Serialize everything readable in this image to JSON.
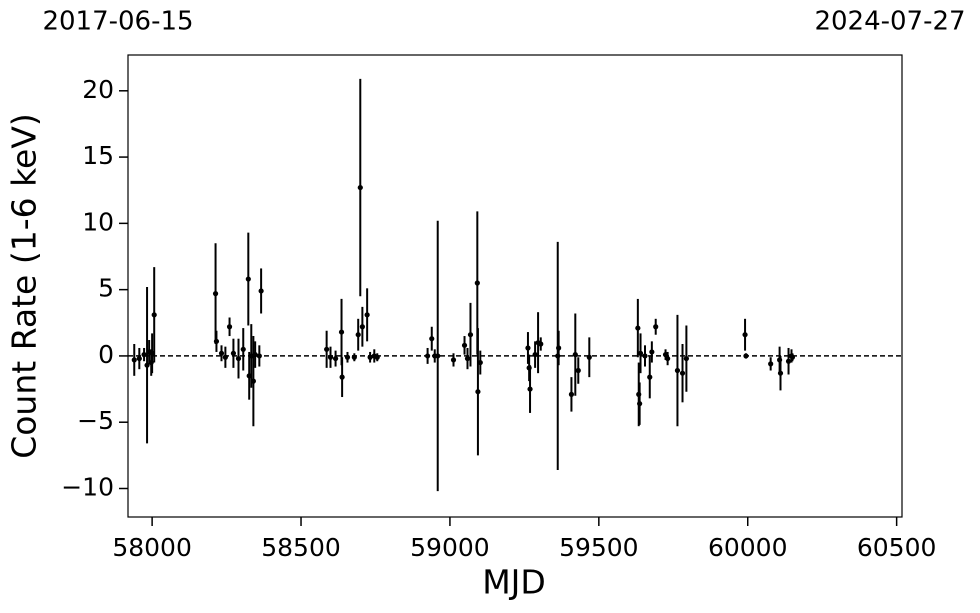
{
  "chart_data": {
    "type": "errorbar",
    "xlabel": "MJD",
    "ylabel": "Count Rate (1-6 keV)",
    "top_labels": [
      "2017-06-15",
      "2024-07-27"
    ],
    "xlim": [
      57919,
      60518
    ],
    "ylim": [
      -12.15,
      22.7
    ],
    "xticks": [
      58000,
      58500,
      59000,
      59500,
      60000,
      60500
    ],
    "yticks": [
      {
        "value": -10,
        "label": "−10"
      },
      {
        "value": -5,
        "label": "−5"
      },
      0,
      5,
      10,
      15,
      20
    ],
    "hline": 0,
    "color": "#000000",
    "series": [
      {
        "x": [
          57940,
          57957,
          57973,
          57983,
          57990,
          57997,
          58000,
          58007,
          58213,
          58216,
          58233,
          58246,
          58260,
          58273,
          58290,
          58306,
          58323,
          58326,
          58333,
          58340,
          58346,
          58360,
          58366,
          58586,
          58599,
          58616,
          58636,
          58638,
          58656,
          58679,
          58692,
          58699,
          58706,
          58722,
          58732,
          58746,
          58756,
          58925,
          58939,
          58949,
          58959,
          59012,
          59049,
          59059,
          59069,
          59092,
          59094,
          59102,
          59262,
          59266,
          59269,
          59286,
          59296,
          59305,
          59362,
          59365,
          59408,
          59421,
          59431,
          59468,
          59631,
          59634,
          59637,
          59640,
          59655,
          59671,
          59678,
          59691,
          59724,
          59731,
          59764,
          59781,
          59794,
          59991,
          59994,
          60077,
          60107,
          60110,
          60137,
          60147,
          60150
        ],
        "values": [
          -0.3,
          -0.2,
          0.1,
          -0.7,
          0.3,
          -0.5,
          0.2,
          3.1,
          4.7,
          1.1,
          0.2,
          -0.1,
          2.2,
          0.2,
          -0.2,
          0.5,
          5.8,
          -1.5,
          0.0,
          -1.9,
          0.1,
          0.0,
          4.9,
          0.5,
          -0.1,
          -0.2,
          1.8,
          -1.6,
          -0.1,
          -0.1,
          1.6,
          12.7,
          2.2,
          3.1,
          -0.1,
          0.0,
          -0.1,
          0.0,
          1.3,
          0.0,
          0.0,
          -0.3,
          0.8,
          -0.2,
          1.6,
          5.5,
          -2.7,
          -0.5,
          0.6,
          -0.9,
          -2.5,
          0.1,
          1.0,
          0.9,
          0.0,
          0.6,
          -2.9,
          0.1,
          -1.1,
          -0.1,
          2.1,
          -2.9,
          -3.6,
          0.2,
          0.0,
          -1.6,
          0.3,
          2.2,
          0.1,
          -0.2,
          -1.1,
          -1.3,
          -0.2,
          1.6,
          0.0,
          -0.6,
          -0.3,
          -1.3,
          -0.4,
          0.0,
          -0.1
        ],
        "errors": [
          1.2,
          0.8,
          0.5,
          5.9,
          0.9,
          1.0,
          1.5,
          3.6,
          3.8,
          0.8,
          0.6,
          0.8,
          0.7,
          1.1,
          1.5,
          1.6,
          3.5,
          1.8,
          2.4,
          3.4,
          1.0,
          0.8,
          1.7,
          1.4,
          0.8,
          0.6,
          2.5,
          1.5,
          0.4,
          0.3,
          1.2,
          8.2,
          1.5,
          2.0,
          0.4,
          0.5,
          0.3,
          0.6,
          0.9,
          0.5,
          10.2,
          0.5,
          0.7,
          0.8,
          2.4,
          5.4,
          4.8,
          0.9,
          1.2,
          1.0,
          1.8,
          1.0,
          2.3,
          0.5,
          8.6,
          1.3,
          1.3,
          3.1,
          1.0,
          1.5,
          2.2,
          2.4,
          1.6,
          1.5,
          0.8,
          1.6,
          0.8,
          0.6,
          0.4,
          0.5,
          4.2,
          2.2,
          2.5,
          1.2,
          0.2,
          0.5,
          1.0,
          1.3,
          1.0,
          0.5,
          0.3
        ]
      }
    ]
  }
}
